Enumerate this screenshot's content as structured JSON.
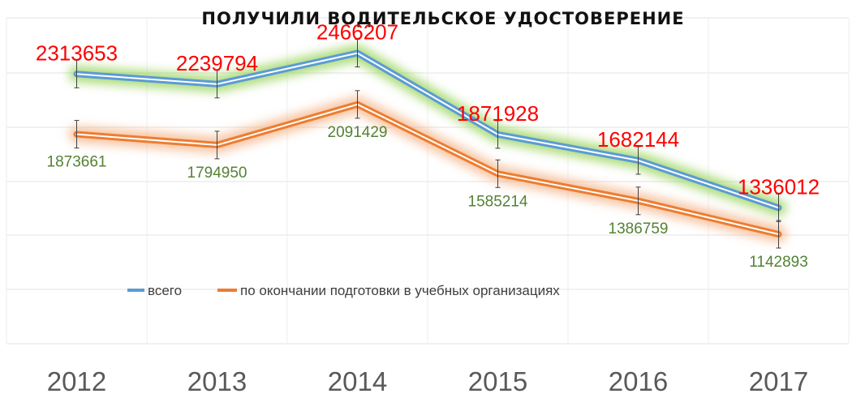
{
  "chart_data": {
    "type": "line",
    "title": "ПОЛУЧИЛИ ВОДИТЕЛЬСКОЕ УДОСТОВЕРЕНИЕ",
    "categories": [
      "2012",
      "2013",
      "2014",
      "2015",
      "2016",
      "2017"
    ],
    "series": [
      {
        "name": "всего",
        "values": [
          2313653,
          2239794,
          2466207,
          1871928,
          1682144,
          1336012
        ],
        "color": "#5b9bd5",
        "glow": "#92d050",
        "label_color": "#ff0000"
      },
      {
        "name": "по окончании подготовки в учебных организациях",
        "values": [
          1873661,
          1794950,
          2091429,
          1585214,
          1386759,
          1142893
        ],
        "color": "#ed7d31",
        "glow": "#f4b183",
        "label_color": "#548235"
      }
    ],
    "error_bars": true,
    "grid": {
      "horizontal": true,
      "vertical": true
    },
    "legend_position": "middle-left",
    "xlabel": "",
    "ylabel": ""
  }
}
